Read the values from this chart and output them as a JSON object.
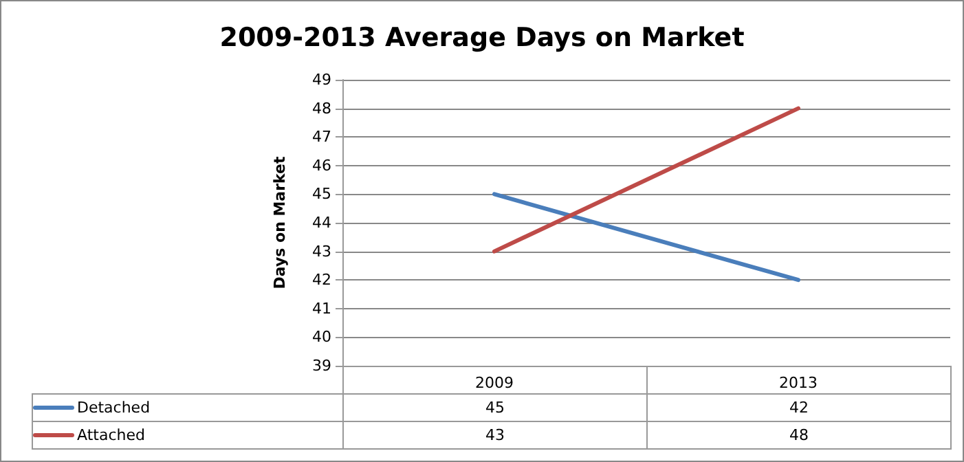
{
  "chart_data": {
    "type": "line",
    "title": "2009-2013 Average Days on Market",
    "ylabel": "Days on Market",
    "categories": [
      "2009",
      "2013"
    ],
    "series": [
      {
        "name": "Detached",
        "color": "#4a7ebb",
        "values": [
          45,
          42
        ]
      },
      {
        "name": "Attached",
        "color": "#be4b48",
        "values": [
          43,
          48
        ]
      }
    ],
    "ylim": [
      39,
      49
    ],
    "yticks": [
      39,
      40,
      41,
      42,
      43,
      44,
      45,
      46,
      47,
      48,
      49
    ],
    "grid": "y",
    "legend": "bottom",
    "data_labels": true,
    "marker": "none",
    "line_style": "solid"
  }
}
